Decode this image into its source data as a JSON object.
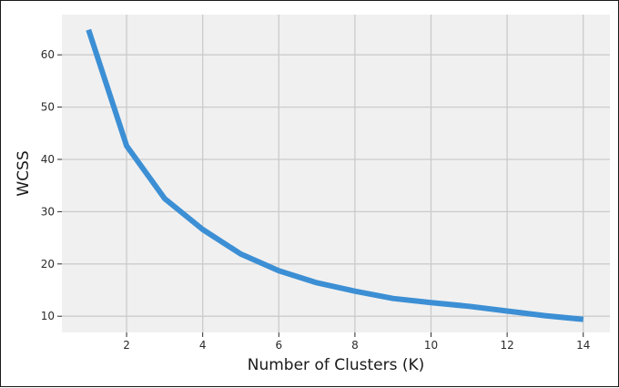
{
  "chart_data": {
    "type": "line",
    "title": "",
    "xlabel": "Number of Clusters (K)",
    "ylabel": "WCSS",
    "x": [
      1,
      2,
      3,
      4,
      5,
      6,
      7,
      8,
      9,
      10,
      11,
      12,
      13,
      14
    ],
    "series": [
      {
        "values": [
          64.8,
          42.6,
          32.5,
          26.6,
          21.9,
          18.7,
          16.4,
          14.8,
          13.4,
          12.6,
          11.9,
          11.0,
          10.1,
          9.4
        ]
      }
    ],
    "xlim": [
      0.3,
      14.7
    ],
    "ylim": [
      6.9,
      67.7
    ],
    "xticks": [
      2,
      4,
      6,
      8,
      10,
      12,
      14
    ],
    "xtick_labels": [
      "2",
      "4",
      "6",
      "8",
      "10",
      "12",
      "14"
    ],
    "yticks": [
      10,
      20,
      30,
      40,
      50,
      60
    ],
    "ytick_labels": [
      "10",
      "20",
      "30",
      "40",
      "50",
      "60"
    ],
    "grid": true,
    "style": "fivethirtyeight",
    "colors": {
      "line": "#3c8fd4",
      "plot_background": "#f0f0f0",
      "grid": "#cbcbcb",
      "figure_border": "#1a1a1a"
    }
  }
}
